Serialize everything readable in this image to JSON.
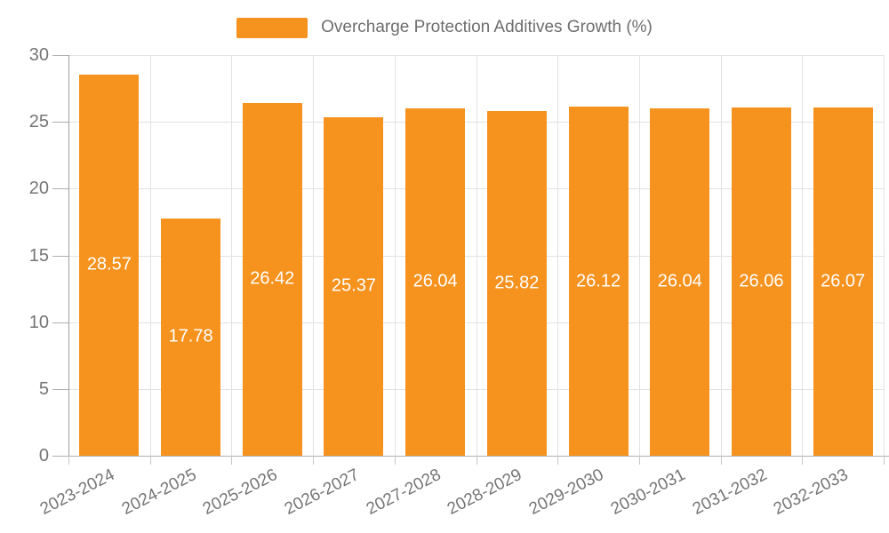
{
  "chart_data": {
    "type": "bar",
    "title": "Overcharge Protection Additives Growth (%)",
    "legend": {
      "label": "Overcharge Protection Additives Growth (%)",
      "position": "top"
    },
    "categories": [
      "2023-2024",
      "2024-2025",
      "2025-2026",
      "2026-2027",
      "2027-2028",
      "2028-2029",
      "2029-2030",
      "2030-2031",
      "2031-2032",
      "2032-2033"
    ],
    "values": [
      28.57,
      17.78,
      26.42,
      25.37,
      26.04,
      25.82,
      26.12,
      26.04,
      26.06,
      26.07
    ],
    "value_label_decimals": 2,
    "xlabel": "",
    "ylabel": "",
    "ylim": [
      0,
      30
    ],
    "yticks": [
      0,
      5,
      10,
      15,
      20,
      25,
      30
    ],
    "grid": true,
    "colors": {
      "bar": "#f6921e",
      "value_label": "#ffffff",
      "axis_text": "#757575",
      "legend_text": "#6e6e6e",
      "gridline": "#e2e2e2",
      "tick": "#c6c6c6",
      "y_axis_line": "#a0a0a0",
      "x_axis_line": "#b0b0b0",
      "background": "#ffffff"
    }
  }
}
